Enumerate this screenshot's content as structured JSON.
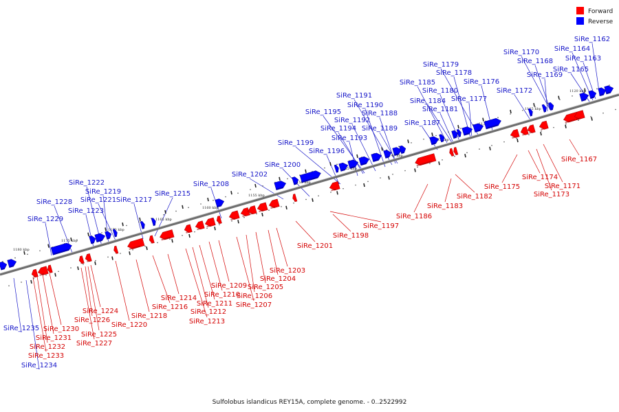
{
  "caption": "Sulfolobus islandicus REY15A, complete genome. - 0..2522992",
  "legend": [
    {
      "label": "Forward",
      "color": "#ff0000"
    },
    {
      "label": "Reverse",
      "color": "#0000ff"
    }
  ],
  "ticks": [
    "1120 kbp",
    "1125 kbp",
    "1130 kbp",
    "1135 kbp",
    "1140 kbp",
    "1145 kbp",
    "1150 kbp",
    "1155 kbp",
    "1160 kbp",
    "1165 kbp",
    "1170 kbp",
    "1175 kbp",
    "1180 kbp"
  ],
  "reverse_genes": [
    "SiRe_1162",
    "SiRe_1163",
    "SiRe_1164",
    "SiRe_1165",
    "SiRe_1168",
    "SiRe_1169",
    "SiRe_1170",
    "SiRe_1172",
    "SiRe_1176",
    "SiRe_1177",
    "SiRe_1178",
    "SiRe_1179",
    "SiRe_1180",
    "SiRe_1181",
    "SiRe_1184",
    "SiRe_1185",
    "SiRe_1187",
    "SiRe_1188",
    "SiRe_1189",
    "SiRe_1190",
    "SiRe_1191",
    "SiRe_1192",
    "SiRe_1193",
    "SiRe_1194",
    "SiRe_1195",
    "SiRe_1196",
    "SiRe_1199",
    "SiRe_1200",
    "SiRe_1202",
    "SiRe_1208",
    "SiRe_1215",
    "SiRe_1217",
    "SiRe_1219",
    "SiRe_1221",
    "SiRe_1222",
    "SiRe_1223",
    "SiRe_1228",
    "SiRe_1229",
    "SiRe_1235",
    "SiRe_1234"
  ],
  "forward_genes": [
    "SiRe_1167",
    "SiRe_1171",
    "SiRe_1173",
    "SiRe_1174",
    "SiRe_1175",
    "SiRe_1182",
    "SiRe_1183",
    "SiRe_1186",
    "SiRe_1197",
    "SiRe_1198",
    "SiRe_1201",
    "SiRe_1203",
    "SiRe_1204",
    "SiRe_1205",
    "SiRe_1206",
    "SiRe_1207",
    "SiRe_1209",
    "SiRe_1210",
    "SiRe_1211",
    "SiRe_1212",
    "SiRe_1213",
    "SiRe_1214",
    "SiRe_1216",
    "SiRe_1218",
    "SiRe_1220",
    "SiRe_1224",
    "SiRe_1225",
    "SiRe_1226",
    "SiRe_1227",
    "SiRe_1230",
    "SiRe_1231",
    "SiRe_1232",
    "SiRe_1233"
  ]
}
